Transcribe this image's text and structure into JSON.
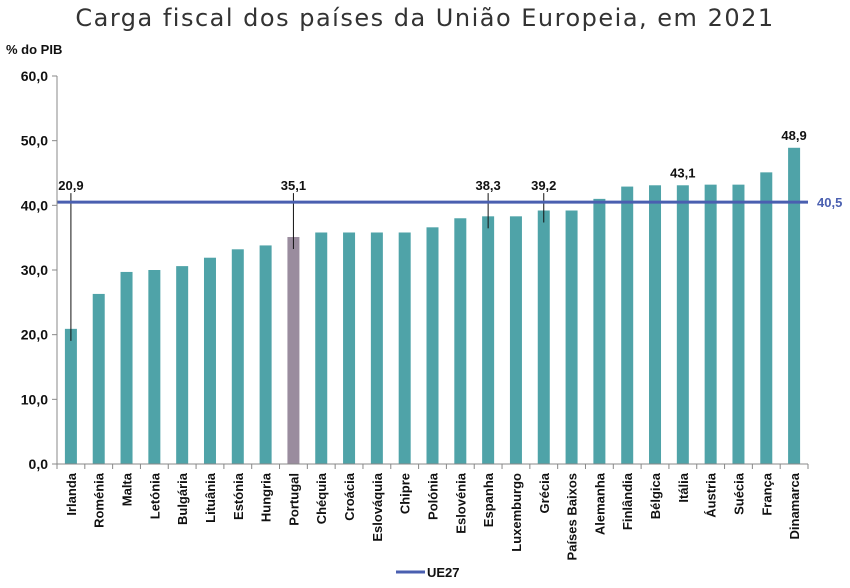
{
  "chart_data": {
    "type": "bar",
    "title": "Carga fiscal dos países da União Europeia, em 2021",
    "ylabel": "% do PIB",
    "ylim": [
      0,
      60
    ],
    "yticks": [
      "0,0",
      "10,0",
      "20,0",
      "30,0",
      "40,0",
      "50,0",
      "60,0"
    ],
    "categories": [
      "Irlanda",
      "Roménia",
      "Malta",
      "Letónia",
      "Bulgária",
      "Lituânia",
      "Estónia",
      "Hungria",
      "Portugal",
      "Chéquia",
      "Croácia",
      "Eslováquia",
      "Chipre",
      "Polónia",
      "Eslovénia",
      "Espanha",
      "Luxemburgo",
      "Grécia",
      "Países Baixos",
      "Alemanha",
      "Finlândia",
      "Bélgica",
      "Itália",
      "Áustria",
      "Suécia",
      "França",
      "Dinamarca"
    ],
    "values": [
      20.9,
      26.3,
      29.7,
      30.0,
      30.6,
      31.9,
      33.2,
      33.8,
      35.1,
      35.8,
      35.8,
      35.8,
      35.8,
      36.6,
      38.0,
      38.3,
      38.3,
      39.2,
      39.2,
      41.0,
      42.9,
      43.1,
      43.1,
      43.2,
      43.2,
      45.1,
      48.9
    ],
    "data_labels": [
      {
        "index": 0,
        "text": "20,9"
      },
      {
        "index": 8,
        "text": "35,1"
      },
      {
        "index": 15,
        "text": "38,3"
      },
      {
        "index": 17,
        "text": "39,2"
      },
      {
        "index": 22,
        "text": "43,1"
      },
      {
        "index": 26,
        "text": "48,9"
      }
    ],
    "reference_line": {
      "name": "UE27",
      "value": 40.5,
      "label": "40,5"
    },
    "legend": {
      "entries": [
        "UE27"
      ],
      "position": "bottom"
    },
    "grid": false,
    "colors": {
      "bar": "#4fa3a8",
      "highlight": "#9a8c9e",
      "reference": "#4a5fb0",
      "axis": "#888888"
    },
    "highlight_category": "Portugal"
  }
}
